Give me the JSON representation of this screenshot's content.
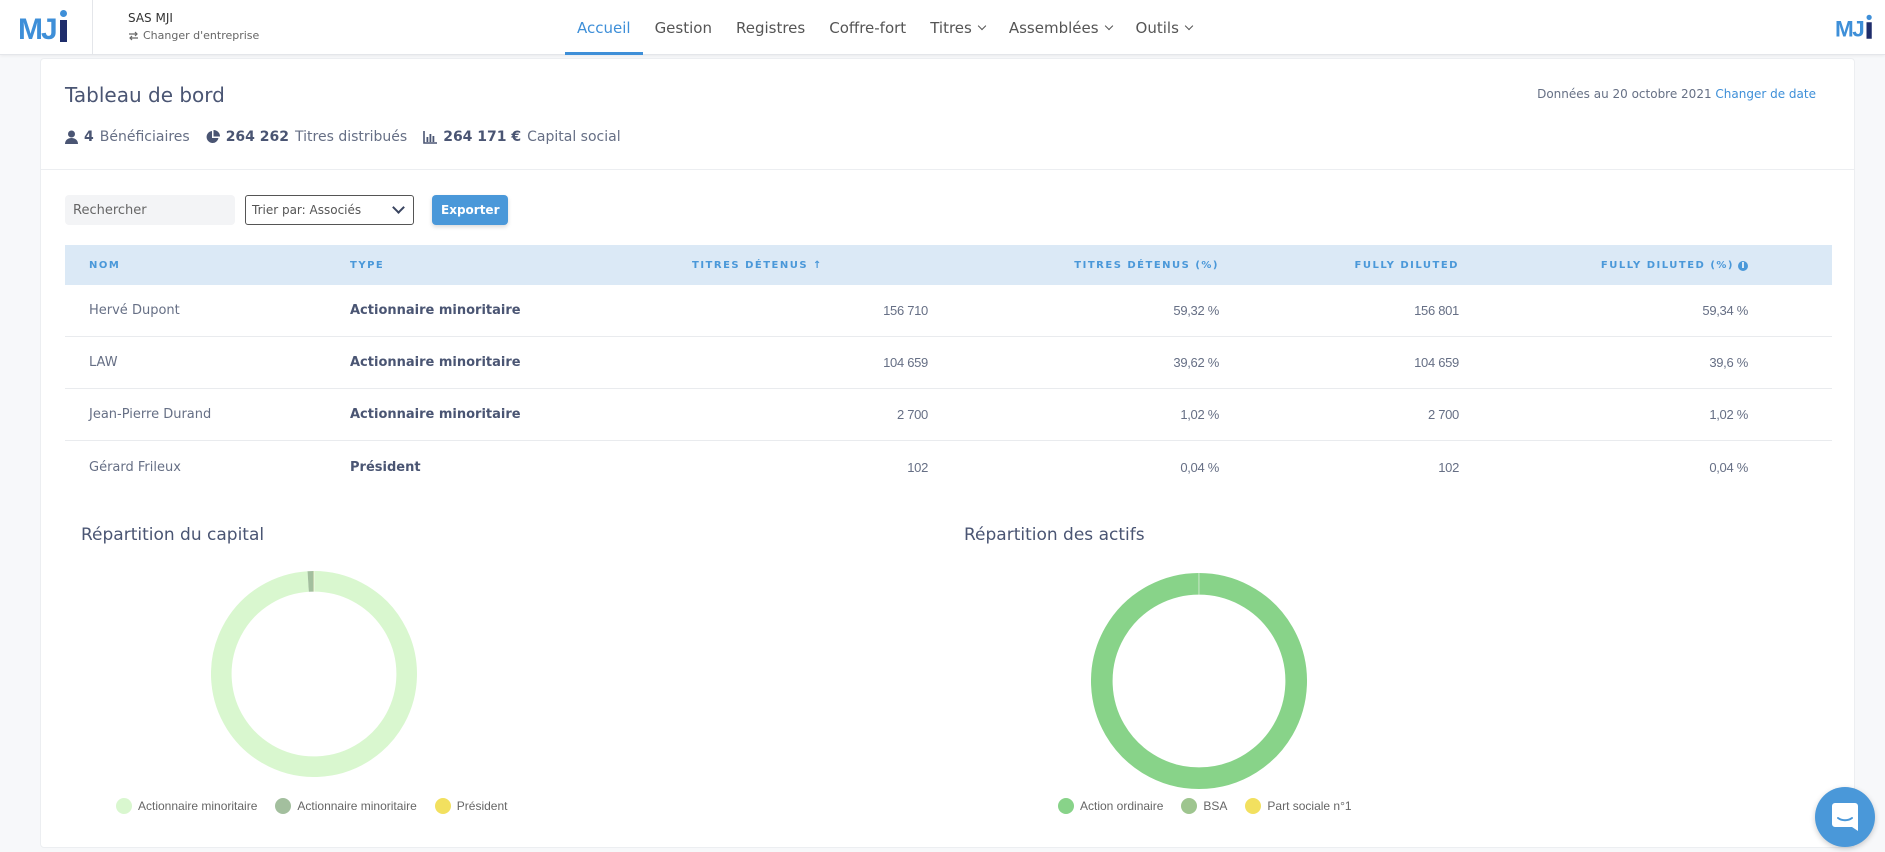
{
  "header": {
    "logo_text": "MJi",
    "company_name": "SAS MJI",
    "switch_company_label": "Changer d'entreprise",
    "nav": [
      {
        "label": "Accueil",
        "active": true,
        "dropdown": false
      },
      {
        "label": "Gestion",
        "active": false,
        "dropdown": false
      },
      {
        "label": "Registres",
        "active": false,
        "dropdown": false
      },
      {
        "label": "Coffre-fort",
        "active": false,
        "dropdown": false
      },
      {
        "label": "Titres",
        "active": false,
        "dropdown": true
      },
      {
        "label": "Assemblées",
        "active": false,
        "dropdown": true
      },
      {
        "label": "Outils",
        "active": false,
        "dropdown": true
      }
    ]
  },
  "dashboard": {
    "title": "Tableau de bord",
    "date_prefix": "Données au 20 octobre 2021",
    "change_date_label": "Changer de date",
    "stats": {
      "beneficiaries_count": "4",
      "beneficiaries_label": "Bénéficiaires",
      "shares_count": "264 262",
      "shares_label": "Titres distribués",
      "capital_amount": "264 171 €",
      "capital_label": "Capital social"
    }
  },
  "controls": {
    "search_placeholder": "Rechercher",
    "sort_label": "Trier par: Associés",
    "export_label": "Exporter"
  },
  "table": {
    "headers": [
      "Nom",
      "Type",
      "Titres détenus",
      "Titres détenus (%)",
      "Fully diluted",
      "Fully diluted (%)"
    ],
    "sort_indicator": "↑",
    "rows": [
      {
        "name": "Hervé Dupont",
        "type": "Actionnaire minoritaire",
        "shares": "156 710",
        "shares_pct": "59,32 %",
        "fully_diluted": "156 801",
        "fully_diluted_pct": "59,34 %"
      },
      {
        "name": "LAW",
        "type": "Actionnaire minoritaire",
        "shares": "104 659",
        "shares_pct": "39,62 %",
        "fully_diluted": "104 659",
        "fully_diluted_pct": "39,6 %"
      },
      {
        "name": "Jean-Pierre Durand",
        "type": "Actionnaire minoritaire",
        "shares": "2 700",
        "shares_pct": "1,02 %",
        "fully_diluted": "2 700",
        "fully_diluted_pct": "1,02 %"
      },
      {
        "name": "Gérard Frileux",
        "type": "Président",
        "shares": "102",
        "shares_pct": "0,04 %",
        "fully_diluted": "102",
        "fully_diluted_pct": "0,04 %"
      }
    ]
  },
  "chart_data": [
    {
      "type": "pie",
      "title": "Répartition du capital",
      "categories": [
        "Actionnaire minoritaire",
        "Actionnaire minoritaire",
        "Président"
      ],
      "values": [
        99.0,
        0.96,
        0.04
      ],
      "colors": [
        "#d9f7cf",
        "#a3bf9e",
        "#f2e05f"
      ],
      "legend_position": "bottom",
      "donut": true
    },
    {
      "type": "pie",
      "title": "Répartition des actifs",
      "categories": [
        "Action ordinaire",
        "BSA",
        "Part sociale n°1"
      ],
      "values": [
        99.97,
        0.03,
        0.0
      ],
      "colors": [
        "#88d389",
        "#9ec58f",
        "#f2e05f"
      ],
      "legend_position": "bottom",
      "donut": true
    }
  ],
  "colors": {
    "accent": "#3e8fd8",
    "table_header_bg": "#dbe9f6",
    "button_bg": "#4a98d9",
    "text_primary": "#4a5573"
  }
}
